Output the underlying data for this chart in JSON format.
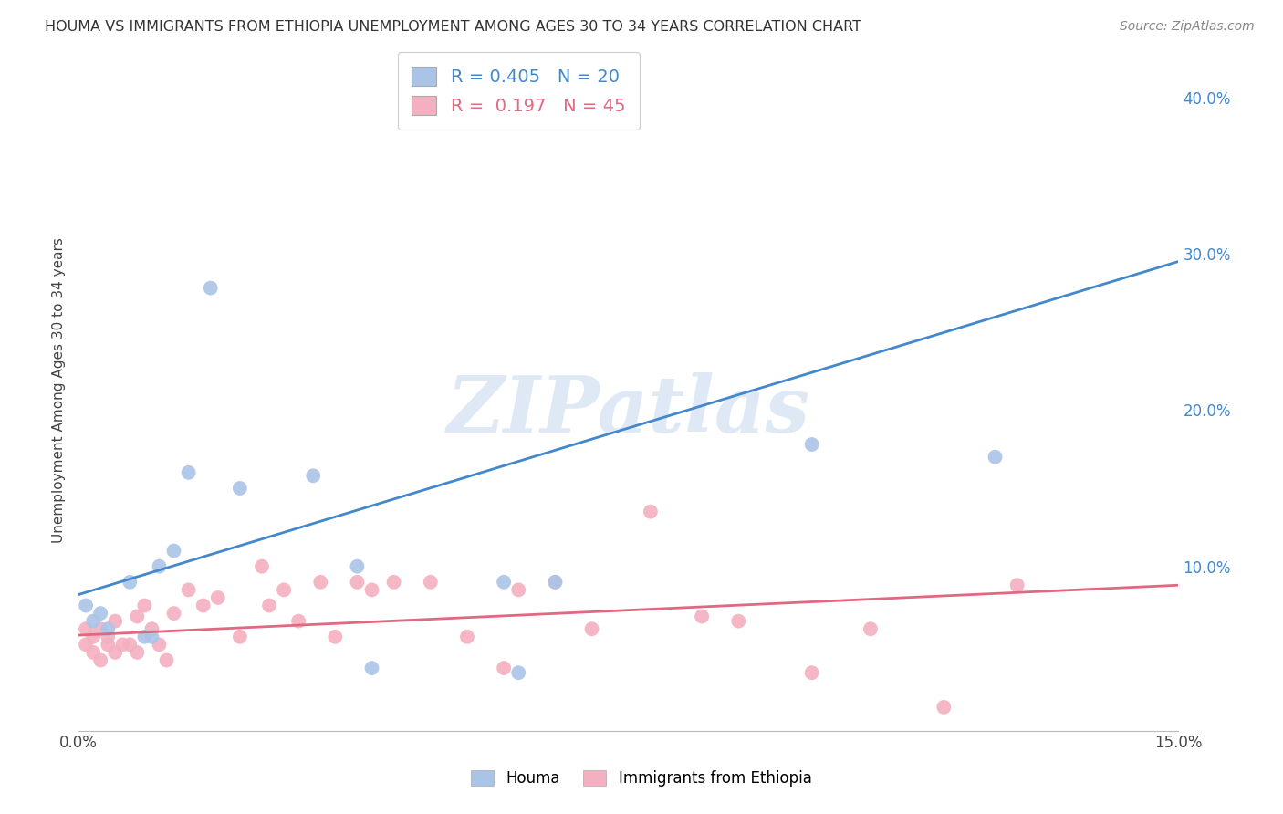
{
  "title": "HOUMA VS IMMIGRANTS FROM ETHIOPIA UNEMPLOYMENT AMONG AGES 30 TO 34 YEARS CORRELATION CHART",
  "source": "Source: ZipAtlas.com",
  "ylabel": "Unemployment Among Ages 30 to 34 years",
  "xlim": [
    0.0,
    0.15
  ],
  "ylim": [
    -0.005,
    0.43
  ],
  "xticks": [
    0.0,
    0.05,
    0.1,
    0.15
  ],
  "xtick_labels": [
    "0.0%",
    "",
    "",
    "15.0%"
  ],
  "ytick_positions_right": [
    0.1,
    0.2,
    0.3,
    0.4
  ],
  "ytick_labels_right": [
    "10.0%",
    "20.0%",
    "30.0%",
    "40.0%"
  ],
  "grid_color": "#cccccc",
  "background_color": "#ffffff",
  "houma_color": "#aac4e8",
  "ethiopia_color": "#f4b0c0",
  "houma_line_color": "#4488cc",
  "ethiopia_line_color": "#e06880",
  "houma_R": 0.405,
  "houma_N": 20,
  "ethiopia_R": 0.197,
  "ethiopia_N": 45,
  "legend_label_houma": "Houma",
  "legend_label_ethiopia": "Immigrants from Ethiopia",
  "watermark": "ZIPatlas",
  "houma_x": [
    0.001,
    0.002,
    0.003,
    0.004,
    0.007,
    0.009,
    0.01,
    0.011,
    0.013,
    0.015,
    0.018,
    0.022,
    0.032,
    0.038,
    0.04,
    0.058,
    0.06,
    0.065,
    0.1,
    0.125
  ],
  "houma_y": [
    0.075,
    0.065,
    0.07,
    0.06,
    0.09,
    0.055,
    0.055,
    0.1,
    0.11,
    0.16,
    0.278,
    0.15,
    0.158,
    0.1,
    0.035,
    0.09,
    0.032,
    0.09,
    0.178,
    0.17
  ],
  "ethiopia_x": [
    0.001,
    0.001,
    0.002,
    0.002,
    0.003,
    0.003,
    0.004,
    0.004,
    0.005,
    0.005,
    0.006,
    0.007,
    0.008,
    0.008,
    0.009,
    0.01,
    0.011,
    0.012,
    0.013,
    0.015,
    0.017,
    0.019,
    0.022,
    0.025,
    0.026,
    0.028,
    0.03,
    0.033,
    0.035,
    0.038,
    0.04,
    0.043,
    0.048,
    0.053,
    0.058,
    0.06,
    0.065,
    0.07,
    0.078,
    0.085,
    0.09,
    0.1,
    0.108,
    0.118,
    0.128
  ],
  "ethiopia_y": [
    0.06,
    0.05,
    0.055,
    0.045,
    0.04,
    0.06,
    0.05,
    0.055,
    0.065,
    0.045,
    0.05,
    0.05,
    0.045,
    0.068,
    0.075,
    0.06,
    0.05,
    0.04,
    0.07,
    0.085,
    0.075,
    0.08,
    0.055,
    0.1,
    0.075,
    0.085,
    0.065,
    0.09,
    0.055,
    0.09,
    0.085,
    0.09,
    0.09,
    0.055,
    0.035,
    0.085,
    0.09,
    0.06,
    0.135,
    0.068,
    0.065,
    0.032,
    0.06,
    0.01,
    0.088
  ],
  "houma_line_x": [
    0.0,
    0.15
  ],
  "houma_line_y": [
    0.082,
    0.295
  ],
  "ethiopia_line_x": [
    0.0,
    0.15
  ],
  "ethiopia_line_y": [
    0.056,
    0.088
  ]
}
